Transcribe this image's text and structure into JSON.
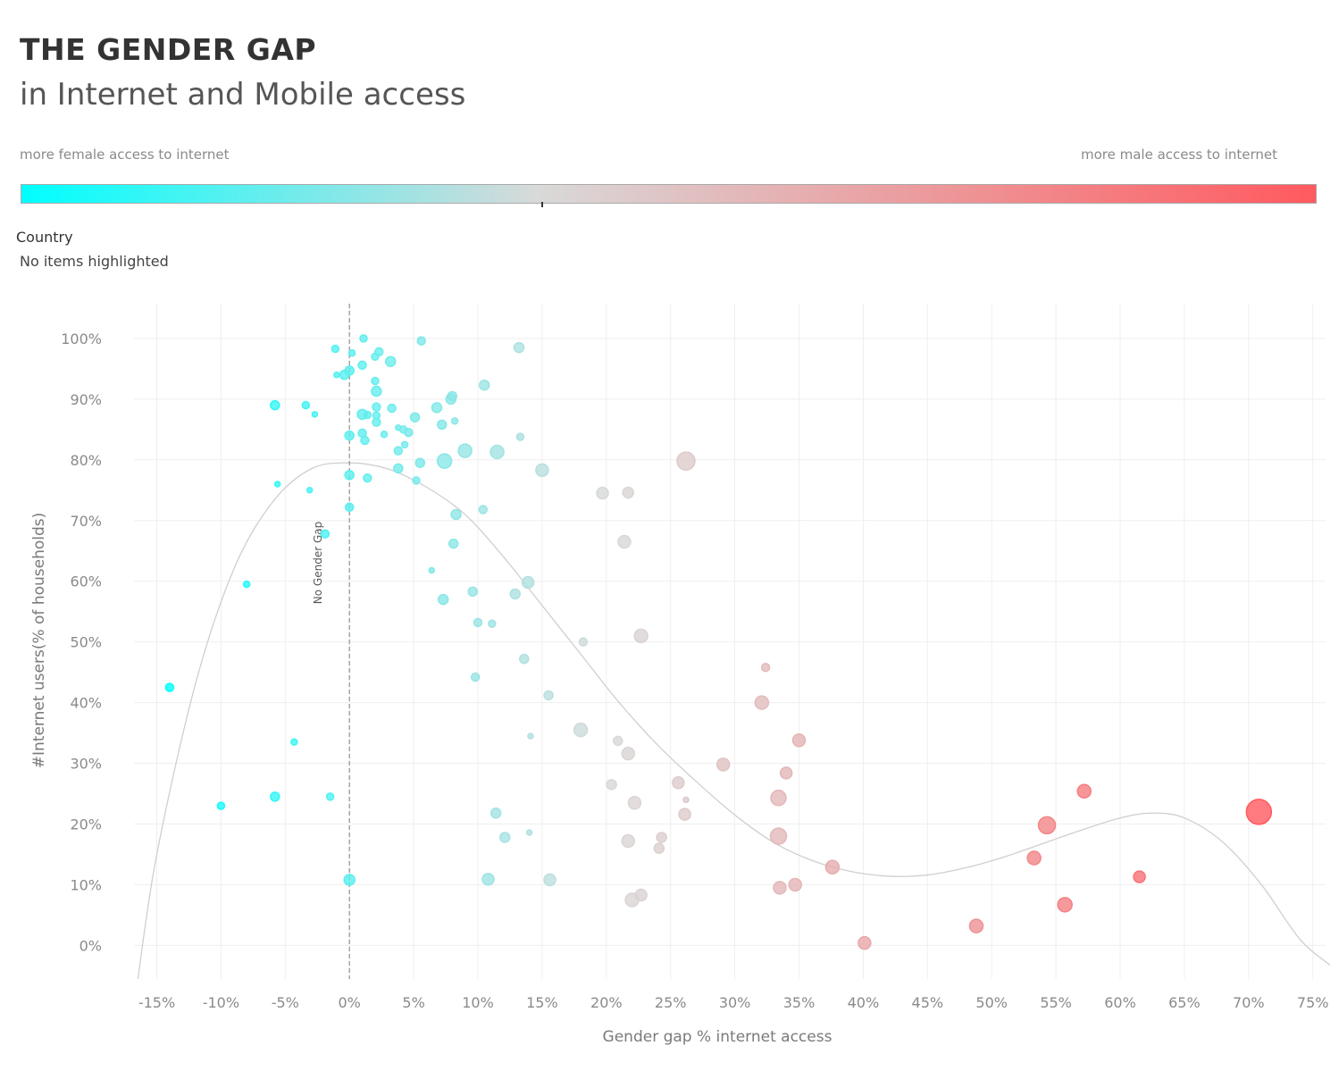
{
  "header": {
    "title": "THE GENDER GAP",
    "subtitle": "in Internet and Mobile access"
  },
  "color_legend": {
    "left_label": "more female access to internet",
    "right_label": "more male access to internet",
    "colors": [
      "#00ffff",
      "#d9d9d9",
      "#ff5a5f"
    ]
  },
  "highlighter": {
    "label": "Country",
    "value": "No items highlighted"
  },
  "chart_data": {
    "type": "scatter",
    "title": "",
    "xlabel": "Gender gap % internet access",
    "ylabel": "#Internet users(% of households)",
    "xlim": [
      -16.5,
      76.5
    ],
    "ylim": [
      -5.5,
      105.5
    ],
    "x_ticks": [
      -15,
      -10,
      -5,
      0,
      5,
      10,
      15,
      20,
      25,
      30,
      35,
      40,
      45,
      50,
      55,
      60,
      65,
      70,
      75
    ],
    "x_tick_labels": [
      "-15%",
      "-10%",
      "-5%",
      "0%",
      "5%",
      "10%",
      "15%",
      "20%",
      "25%",
      "30%",
      "35%",
      "40%",
      "45%",
      "50%",
      "55%",
      "60%",
      "65%",
      "70%",
      "75%"
    ],
    "y_ticks": [
      0,
      10,
      20,
      30,
      40,
      50,
      60,
      70,
      80,
      90,
      100
    ],
    "y_tick_labels": [
      "0%",
      "10%",
      "20%",
      "30%",
      "40%",
      "50%",
      "60%",
      "70%",
      "80%",
      "90%",
      "100%"
    ],
    "grid": true,
    "reference_line": {
      "x": 0,
      "label": "No Gender Gap"
    },
    "trend_curve": [
      [
        -16.5,
        -6
      ],
      [
        -15,
        15
      ],
      [
        -12,
        43
      ],
      [
        -9,
        62
      ],
      [
        -6,
        73
      ],
      [
        -3,
        78.5
      ],
      [
        0,
        79.5
      ],
      [
        3,
        78.5
      ],
      [
        6,
        75.5
      ],
      [
        9,
        71
      ],
      [
        12,
        64
      ],
      [
        15,
        56
      ],
      [
        18,
        48
      ],
      [
        21,
        40
      ],
      [
        24,
        33
      ],
      [
        27,
        27
      ],
      [
        30,
        21.5
      ],
      [
        33,
        17
      ],
      [
        36,
        14
      ],
      [
        39,
        12.2
      ],
      [
        42,
        11.4
      ],
      [
        45,
        11.6
      ],
      [
        48,
        12.8
      ],
      [
        51,
        14.6
      ],
      [
        54,
        16.8
      ],
      [
        57,
        19
      ],
      [
        60,
        21
      ],
      [
        62.5,
        21.8
      ],
      [
        65,
        21
      ],
      [
        68,
        17
      ],
      [
        71,
        10
      ],
      [
        74,
        1
      ],
      [
        76.5,
        -3.5
      ]
    ],
    "points": [
      {
        "x": -14,
        "y": 42.5,
        "r": 4.5
      },
      {
        "x": -10,
        "y": 23,
        "r": 4
      },
      {
        "x": -8,
        "y": 59.5,
        "r": 3.5
      },
      {
        "x": -5.8,
        "y": 89,
        "r": 5
      },
      {
        "x": -5.6,
        "y": 76,
        "r": 3
      },
      {
        "x": -5.8,
        "y": 24.5,
        "r": 5
      },
      {
        "x": -4.3,
        "y": 33.5,
        "r": 3.5
      },
      {
        "x": -3.4,
        "y": 89,
        "r": 4
      },
      {
        "x": -3.1,
        "y": 75,
        "r": 3
      },
      {
        "x": -2.7,
        "y": 87.5,
        "r": 3
      },
      {
        "x": -1.9,
        "y": 67.8,
        "r": 4.5
      },
      {
        "x": -1.5,
        "y": 24.5,
        "r": 4
      },
      {
        "x": -1.1,
        "y": 98.3,
        "r": 4
      },
      {
        "x": -1,
        "y": 94,
        "r": 3
      },
      {
        "x": -0.4,
        "y": 94,
        "r": 5
      },
      {
        "x": 0,
        "y": 94.7,
        "r": 5
      },
      {
        "x": 0.2,
        "y": 97.6,
        "r": 3.5
      },
      {
        "x": 0,
        "y": 84,
        "r": 5
      },
      {
        "x": 0,
        "y": 77.5,
        "r": 5
      },
      {
        "x": 0,
        "y": 72.2,
        "r": 4.5
      },
      {
        "x": 0,
        "y": 10.8,
        "r": 6
      },
      {
        "x": 1.1,
        "y": 100,
        "r": 4
      },
      {
        "x": 1,
        "y": 95.6,
        "r": 4.5
      },
      {
        "x": 1,
        "y": 87.5,
        "r": 5.5
      },
      {
        "x": 1.4,
        "y": 87.4,
        "r": 4
      },
      {
        "x": 1,
        "y": 84.4,
        "r": 4.5
      },
      {
        "x": 1.2,
        "y": 83.2,
        "r": 4.5
      },
      {
        "x": 1.4,
        "y": 77,
        "r": 4.5
      },
      {
        "x": 2,
        "y": 97,
        "r": 4
      },
      {
        "x": 2.3,
        "y": 97.8,
        "r": 4.5
      },
      {
        "x": 2,
        "y": 93,
        "r": 4
      },
      {
        "x": 2.1,
        "y": 91.3,
        "r": 5.5
      },
      {
        "x": 2.1,
        "y": 88.7,
        "r": 4.5
      },
      {
        "x": 2.1,
        "y": 87.3,
        "r": 4
      },
      {
        "x": 2.1,
        "y": 86.2,
        "r": 4.5
      },
      {
        "x": 2.7,
        "y": 84.2,
        "r": 3.5
      },
      {
        "x": 3.2,
        "y": 96.2,
        "r": 5.5
      },
      {
        "x": 3.3,
        "y": 88.5,
        "r": 4.5
      },
      {
        "x": 3.8,
        "y": 85.3,
        "r": 3
      },
      {
        "x": 4.2,
        "y": 85,
        "r": 4
      },
      {
        "x": 4.6,
        "y": 84.5,
        "r": 4.5
      },
      {
        "x": 4.3,
        "y": 82.5,
        "r": 3.5
      },
      {
        "x": 3.8,
        "y": 81.5,
        "r": 4.5
      },
      {
        "x": 3.8,
        "y": 78.6,
        "r": 5
      },
      {
        "x": 5.1,
        "y": 87,
        "r": 5
      },
      {
        "x": 5.6,
        "y": 99.6,
        "r": 4.5
      },
      {
        "x": 5.5,
        "y": 79.5,
        "r": 5
      },
      {
        "x": 5.2,
        "y": 76.6,
        "r": 4
      },
      {
        "x": 6.4,
        "y": 61.8,
        "r": 3
      },
      {
        "x": 6.8,
        "y": 88.6,
        "r": 5.5
      },
      {
        "x": 7.2,
        "y": 85.8,
        "r": 5
      },
      {
        "x": 7.4,
        "y": 79.8,
        "r": 8
      },
      {
        "x": 7.9,
        "y": 90,
        "r": 5.5
      },
      {
        "x": 8,
        "y": 90.5,
        "r": 5
      },
      {
        "x": 8.2,
        "y": 86.4,
        "r": 3.5
      },
      {
        "x": 7.3,
        "y": 57,
        "r": 5.5
      },
      {
        "x": 8.1,
        "y": 66.2,
        "r": 5
      },
      {
        "x": 8.3,
        "y": 71,
        "r": 5.5
      },
      {
        "x": 9,
        "y": 81.5,
        "r": 7.5
      },
      {
        "x": 9.6,
        "y": 58.3,
        "r": 5
      },
      {
        "x": 9.8,
        "y": 44.2,
        "r": 4.5
      },
      {
        "x": 10,
        "y": 53.2,
        "r": 4.5
      },
      {
        "x": 10.4,
        "y": 71.8,
        "r": 4.5
      },
      {
        "x": 10.5,
        "y": 92.3,
        "r": 5.5
      },
      {
        "x": 10.8,
        "y": 10.9,
        "r": 6.5
      },
      {
        "x": 11.5,
        "y": 81.3,
        "r": 7.5
      },
      {
        "x": 11.1,
        "y": 53,
        "r": 4
      },
      {
        "x": 11.4,
        "y": 21.8,
        "r": 5.5
      },
      {
        "x": 12.1,
        "y": 17.8,
        "r": 5.5
      },
      {
        "x": 12.9,
        "y": 57.9,
        "r": 5.5
      },
      {
        "x": 13.2,
        "y": 98.5,
        "r": 5.5
      },
      {
        "x": 13.3,
        "y": 83.8,
        "r": 4
      },
      {
        "x": 13.6,
        "y": 47.2,
        "r": 5
      },
      {
        "x": 13.9,
        "y": 59.8,
        "r": 6.5
      },
      {
        "x": 14.1,
        "y": 34.5,
        "r": 3
      },
      {
        "x": 14,
        "y": 18.6,
        "r": 3
      },
      {
        "x": 15,
        "y": 78.3,
        "r": 7
      },
      {
        "x": 15.5,
        "y": 41.2,
        "r": 5
      },
      {
        "x": 15.6,
        "y": 10.8,
        "r": 6.5
      },
      {
        "x": 18.2,
        "y": 50,
        "r": 4.5
      },
      {
        "x": 18,
        "y": 35.5,
        "r": 7.5
      },
      {
        "x": 19.7,
        "y": 74.5,
        "r": 6.5
      },
      {
        "x": 20.4,
        "y": 26.5,
        "r": 5.5
      },
      {
        "x": 21.4,
        "y": 66.5,
        "r": 7
      },
      {
        "x": 21.7,
        "y": 74.6,
        "r": 6
      },
      {
        "x": 20.9,
        "y": 33.7,
        "r": 5
      },
      {
        "x": 21.7,
        "y": 31.6,
        "r": 7
      },
      {
        "x": 21.7,
        "y": 17.2,
        "r": 7
      },
      {
        "x": 22.7,
        "y": 51,
        "r": 7.5
      },
      {
        "x": 22.2,
        "y": 23.5,
        "r": 7
      },
      {
        "x": 22,
        "y": 7.5,
        "r": 7.5
      },
      {
        "x": 22.7,
        "y": 8.3,
        "r": 6.5
      },
      {
        "x": 24.1,
        "y": 16,
        "r": 5.5
      },
      {
        "x": 24.3,
        "y": 17.8,
        "r": 5.5
      },
      {
        "x": 25.6,
        "y": 26.8,
        "r": 6.5
      },
      {
        "x": 26.2,
        "y": 24,
        "r": 3
      },
      {
        "x": 26.1,
        "y": 21.6,
        "r": 6.5
      },
      {
        "x": 26.2,
        "y": 79.8,
        "r": 10
      },
      {
        "x": 29.1,
        "y": 29.8,
        "r": 7
      },
      {
        "x": 32.1,
        "y": 40,
        "r": 7.5
      },
      {
        "x": 32.4,
        "y": 45.8,
        "r": 4.5
      },
      {
        "x": 33.4,
        "y": 24.3,
        "r": 8.5
      },
      {
        "x": 33.4,
        "y": 18,
        "r": 9
      },
      {
        "x": 34,
        "y": 28.4,
        "r": 6.5
      },
      {
        "x": 35,
        "y": 33.8,
        "r": 7
      },
      {
        "x": 33.5,
        "y": 9.5,
        "r": 7
      },
      {
        "x": 34.7,
        "y": 10,
        "r": 7
      },
      {
        "x": 37.6,
        "y": 12.9,
        "r": 7.5
      },
      {
        "x": 40.1,
        "y": 0.4,
        "r": 7
      },
      {
        "x": 48.8,
        "y": 3.2,
        "r": 7.5
      },
      {
        "x": 53.3,
        "y": 14.4,
        "r": 7.5
      },
      {
        "x": 54.3,
        "y": 19.8,
        "r": 9.5
      },
      {
        "x": 55.7,
        "y": 6.7,
        "r": 8
      },
      {
        "x": 57.2,
        "y": 25.4,
        "r": 7.5
      },
      {
        "x": 61.5,
        "y": 11.3,
        "r": 6.5
      },
      {
        "x": 70.8,
        "y": 22,
        "r": 14
      }
    ]
  }
}
